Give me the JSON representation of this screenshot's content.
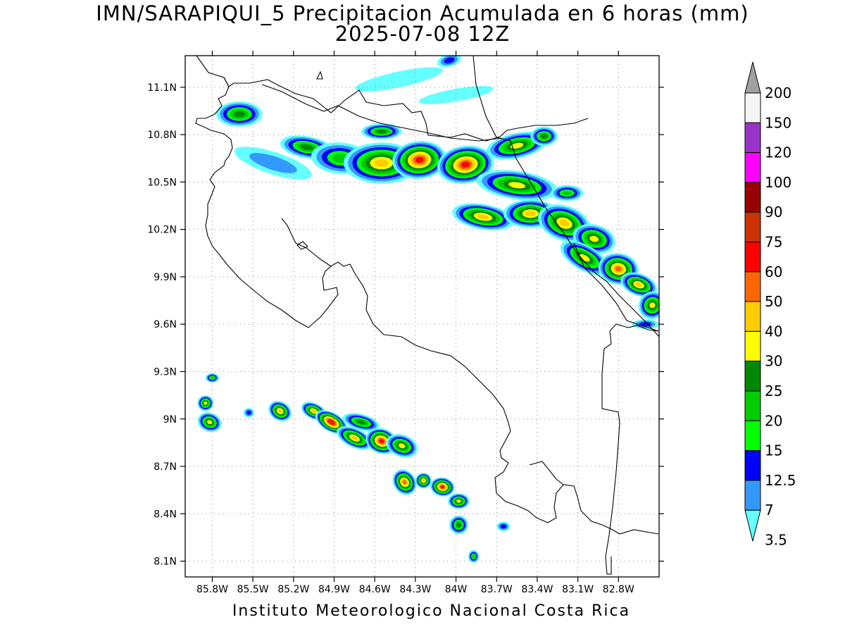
{
  "title": {
    "line1": "IMN/SARAPIQUI_5 Precipitacion Acumulada en 6 horas (mm)",
    "line2": "2025-07-08 12Z"
  },
  "footer": "Instituto Meteorologico Nacional Costa Rica",
  "map": {
    "lon_range": [
      -86.0,
      -82.5
    ],
    "lat_range": [
      8.0,
      11.3
    ],
    "lat_ticks": [
      {
        "value": 11.1,
        "label": "11.1N"
      },
      {
        "value": 10.8,
        "label": "10.8N"
      },
      {
        "value": 10.5,
        "label": "10.5N"
      },
      {
        "value": 10.2,
        "label": "10.2N"
      },
      {
        "value": 9.9,
        "label": "9.9N"
      },
      {
        "value": 9.6,
        "label": "9.6N"
      },
      {
        "value": 9.3,
        "label": "9.3N"
      },
      {
        "value": 9.0,
        "label": "9N"
      },
      {
        "value": 8.7,
        "label": "8.7N"
      },
      {
        "value": 8.4,
        "label": "8.4N"
      },
      {
        "value": 8.1,
        "label": "8.1N"
      }
    ],
    "lon_ticks": [
      {
        "value": -85.8,
        "label": "85.8W"
      },
      {
        "value": -85.5,
        "label": "85.5W"
      },
      {
        "value": -85.2,
        "label": "85.2W"
      },
      {
        "value": -84.9,
        "label": "84.9W"
      },
      {
        "value": -84.6,
        "label": "84.6W"
      },
      {
        "value": -84.3,
        "label": "84.3W"
      },
      {
        "value": -84.0,
        "label": "84W"
      },
      {
        "value": -83.7,
        "label": "83.7W"
      },
      {
        "value": -83.4,
        "label": "83.4W"
      },
      {
        "value": -83.1,
        "label": "83.1W"
      },
      {
        "value": -82.8,
        "label": "82.8W"
      }
    ],
    "grid": "dotted",
    "rain_cells": [
      {
        "lon": -85.6,
        "lat": 10.93,
        "rx": 0.17,
        "ry": 0.08,
        "rot": 0,
        "max": 25
      },
      {
        "lon": -84.42,
        "lat": 11.15,
        "rx": 0.33,
        "ry": 0.05,
        "rot": -12,
        "max": 3.5
      },
      {
        "lon": -84.0,
        "lat": 11.05,
        "rx": 0.28,
        "ry": 0.04,
        "rot": -10,
        "max": 3.5
      },
      {
        "lon": -84.05,
        "lat": 11.27,
        "rx": 0.09,
        "ry": 0.04,
        "rot": -15,
        "max": 12.5
      },
      {
        "lon": -84.55,
        "lat": 10.82,
        "rx": 0.15,
        "ry": 0.05,
        "rot": 0,
        "max": 25
      },
      {
        "lon": -85.35,
        "lat": 10.62,
        "rx": 0.3,
        "ry": 0.07,
        "rot": 18,
        "max": 7
      },
      {
        "lon": -85.1,
        "lat": 10.72,
        "rx": 0.2,
        "ry": 0.07,
        "rot": 10,
        "max": 25
      },
      {
        "lon": -84.85,
        "lat": 10.65,
        "rx": 0.22,
        "ry": 0.1,
        "rot": 5,
        "max": 20
      },
      {
        "lon": -84.55,
        "lat": 10.62,
        "rx": 0.28,
        "ry": 0.13,
        "rot": 0,
        "max": 40
      },
      {
        "lon": -84.27,
        "lat": 10.64,
        "rx": 0.2,
        "ry": 0.12,
        "rot": -5,
        "max": 60
      },
      {
        "lon": -83.93,
        "lat": 10.61,
        "rx": 0.21,
        "ry": 0.12,
        "rot": -8,
        "max": 60
      },
      {
        "lon": -83.55,
        "lat": 10.73,
        "rx": 0.23,
        "ry": 0.08,
        "rot": -12,
        "max": 30
      },
      {
        "lon": -83.35,
        "lat": 10.79,
        "rx": 0.1,
        "ry": 0.06,
        "rot": 0,
        "max": 25
      },
      {
        "lon": -83.55,
        "lat": 10.48,
        "rx": 0.3,
        "ry": 0.09,
        "rot": 8,
        "max": 30
      },
      {
        "lon": -83.18,
        "lat": 10.43,
        "rx": 0.12,
        "ry": 0.05,
        "rot": 0,
        "max": 20
      },
      {
        "lon": -83.8,
        "lat": 10.28,
        "rx": 0.23,
        "ry": 0.08,
        "rot": 10,
        "max": 40
      },
      {
        "lon": -83.45,
        "lat": 10.3,
        "rx": 0.2,
        "ry": 0.09,
        "rot": 0,
        "max": 40
      },
      {
        "lon": -83.2,
        "lat": 10.24,
        "rx": 0.2,
        "ry": 0.11,
        "rot": 20,
        "max": 40
      },
      {
        "lon": -82.98,
        "lat": 10.14,
        "rx": 0.16,
        "ry": 0.09,
        "rot": 15,
        "max": 30
      },
      {
        "lon": -83.05,
        "lat": 10.02,
        "rx": 0.2,
        "ry": 0.08,
        "rot": 30,
        "max": 30
      },
      {
        "lon": -82.8,
        "lat": 9.95,
        "rx": 0.15,
        "ry": 0.1,
        "rot": 10,
        "max": 50
      },
      {
        "lon": -82.65,
        "lat": 9.85,
        "rx": 0.14,
        "ry": 0.07,
        "rot": 20,
        "max": 40
      },
      {
        "lon": -82.55,
        "lat": 9.72,
        "rx": 0.1,
        "ry": 0.09,
        "rot": 40,
        "max": 30
      },
      {
        "lon": -82.6,
        "lat": 9.6,
        "rx": 0.1,
        "ry": 0.03,
        "rot": 0,
        "max": 12.5
      },
      {
        "lon": -85.85,
        "lat": 9.1,
        "rx": 0.06,
        "ry": 0.05,
        "rot": 0,
        "max": 30
      },
      {
        "lon": -85.8,
        "lat": 9.26,
        "rx": 0.05,
        "ry": 0.03,
        "rot": 0,
        "max": 20
      },
      {
        "lon": -85.82,
        "lat": 8.98,
        "rx": 0.09,
        "ry": 0.06,
        "rot": 20,
        "max": 30
      },
      {
        "lon": -85.53,
        "lat": 9.04,
        "rx": 0.04,
        "ry": 0.03,
        "rot": 0,
        "max": 12.5
      },
      {
        "lon": -85.3,
        "lat": 9.05,
        "rx": 0.09,
        "ry": 0.06,
        "rot": 30,
        "max": 40
      },
      {
        "lon": -85.05,
        "lat": 9.05,
        "rx": 0.1,
        "ry": 0.05,
        "rot": 25,
        "max": 40
      },
      {
        "lon": -84.92,
        "lat": 8.98,
        "rx": 0.13,
        "ry": 0.06,
        "rot": 30,
        "max": 75
      },
      {
        "lon": -84.75,
        "lat": 8.88,
        "rx": 0.14,
        "ry": 0.06,
        "rot": 25,
        "max": 40
      },
      {
        "lon": -84.7,
        "lat": 8.98,
        "rx": 0.14,
        "ry": 0.05,
        "rot": 15,
        "max": 25
      },
      {
        "lon": -84.55,
        "lat": 8.86,
        "rx": 0.12,
        "ry": 0.08,
        "rot": 20,
        "max": 60
      },
      {
        "lon": -84.4,
        "lat": 8.83,
        "rx": 0.12,
        "ry": 0.07,
        "rot": 20,
        "max": 30
      },
      {
        "lon": -84.38,
        "lat": 8.6,
        "rx": 0.1,
        "ry": 0.07,
        "rot": 55,
        "max": 50
      },
      {
        "lon": -84.24,
        "lat": 8.61,
        "rx": 0.06,
        "ry": 0.05,
        "rot": 0,
        "max": 40
      },
      {
        "lon": -84.1,
        "lat": 8.57,
        "rx": 0.09,
        "ry": 0.06,
        "rot": 10,
        "max": 60
      },
      {
        "lon": -83.98,
        "lat": 8.48,
        "rx": 0.08,
        "ry": 0.05,
        "rot": 0,
        "max": 30
      },
      {
        "lon": -83.98,
        "lat": 8.33,
        "rx": 0.07,
        "ry": 0.06,
        "rot": 0,
        "max": 25
      },
      {
        "lon": -83.65,
        "lat": 8.32,
        "rx": 0.05,
        "ry": 0.03,
        "rot": 0,
        "max": 12.5
      },
      {
        "lon": -83.87,
        "lat": 8.13,
        "rx": 0.04,
        "ry": 0.04,
        "rot": 0,
        "max": 20
      }
    ]
  },
  "legend": {
    "levels": [
      {
        "label": "3.5",
        "color": "#66ffff"
      },
      {
        "label": "7",
        "color": "#3399ff"
      },
      {
        "label": "12.5",
        "color": "#0000ff"
      },
      {
        "label": "15",
        "color": "#00ff00"
      },
      {
        "label": "20",
        "color": "#00cc00"
      },
      {
        "label": "25",
        "color": "#008800"
      },
      {
        "label": "30",
        "color": "#ffff00"
      },
      {
        "label": "40",
        "color": "#ffcc00"
      },
      {
        "label": "50",
        "color": "#ff6600"
      },
      {
        "label": "60",
        "color": "#ff0000"
      },
      {
        "label": "75",
        "color": "#cc3300"
      },
      {
        "label": "90",
        "color": "#990000"
      },
      {
        "label": "100",
        "color": "#ff00ff"
      },
      {
        "label": "120",
        "color": "#9933cc"
      },
      {
        "label": "150",
        "color": "#f5f5f5"
      },
      {
        "label": "200",
        "color": "#a0a0a0"
      }
    ]
  }
}
